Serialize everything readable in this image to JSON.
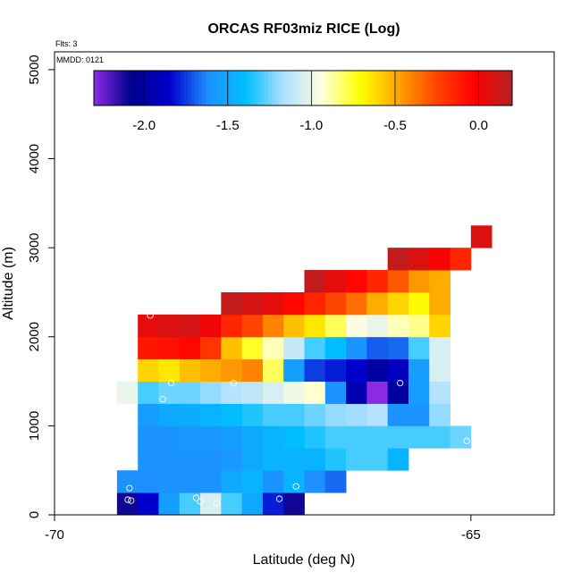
{
  "chart_data": {
    "type": "heatmap",
    "title": "ORCAS RF03miz RICE (Log)",
    "xlabel": "Latitude (deg N)",
    "ylabel": "Altitude (m)",
    "xlim": [
      -70,
      -64.0
    ],
    "ylim": [
      0,
      5200
    ],
    "x_ticks": [
      {
        "value": -70,
        "label": "-70"
      },
      {
        "value": -65,
        "label": "-65"
      }
    ],
    "y_ticks": [
      {
        "value": 0,
        "label": "0"
      },
      {
        "value": 1000,
        "label": "1000"
      },
      {
        "value": 2000,
        "label": "2000"
      },
      {
        "value": 3000,
        "label": "3000"
      },
      {
        "value": 4000,
        "label": "4000"
      },
      {
        "value": 5000,
        "label": "5000"
      }
    ],
    "annotations": {
      "flights": "Flts: 3",
      "date": "MMDD: 0121"
    },
    "colorbar": {
      "range": [
        -2.3,
        0.2
      ],
      "ticks": [
        {
          "value": -2.0,
          "label": "-2.0"
        },
        {
          "value": -1.5,
          "label": "-1.5"
        },
        {
          "value": -1.0,
          "label": "-1.0"
        },
        {
          "value": -0.5,
          "label": "-0.5"
        },
        {
          "value": 0.0,
          "label": "0.0"
        }
      ],
      "colormap": [
        "#8a2be2",
        "#00008b",
        "#0000cd",
        "#1e90ff",
        "#00bfff",
        "#b0e0ff",
        "#ffffe0",
        "#ffff00",
        "#ffa500",
        "#ff4500",
        "#ff0000",
        "#b22222"
      ]
    },
    "grid": {
      "x_start": -69.25,
      "dx": 0.25,
      "y_start": 0,
      "dy": 250
    },
    "cells": [
      {
        "ix": 0,
        "iy": 0,
        "v": -2.1
      },
      {
        "ix": 1,
        "iy": 0,
        "v": -1.85
      },
      {
        "ix": 2,
        "iy": 0,
        "v": -1.55
      },
      {
        "ix": 3,
        "iy": 0,
        "v": -1.3
      },
      {
        "ix": 4,
        "iy": 0,
        "v": -1.05
      },
      {
        "ix": 5,
        "iy": 0,
        "v": -1.3
      },
      {
        "ix": 6,
        "iy": 0,
        "v": -1.5
      },
      {
        "ix": 7,
        "iy": 0,
        "v": -1.8
      },
      {
        "ix": 8,
        "iy": 0,
        "v": -2.1
      },
      {
        "ix": 0,
        "iy": 1,
        "v": -1.62
      },
      {
        "ix": 1,
        "iy": 1,
        "v": -1.62
      },
      {
        "ix": 2,
        "iy": 1,
        "v": -1.6
      },
      {
        "ix": 3,
        "iy": 1,
        "v": -1.6
      },
      {
        "ix": 4,
        "iy": 1,
        "v": -1.6
      },
      {
        "ix": 5,
        "iy": 1,
        "v": -1.5
      },
      {
        "ix": 6,
        "iy": 1,
        "v": -1.45
      },
      {
        "ix": 7,
        "iy": 1,
        "v": -1.6
      },
      {
        "ix": 8,
        "iy": 1,
        "v": -1.45
      },
      {
        "ix": 9,
        "iy": 1,
        "v": -1.62
      },
      {
        "ix": 10,
        "iy": 1,
        "v": -1.68
      },
      {
        "ix": 1,
        "iy": 2,
        "v": -1.6
      },
      {
        "ix": 2,
        "iy": 2,
        "v": -1.6
      },
      {
        "ix": 3,
        "iy": 2,
        "v": -1.6
      },
      {
        "ix": 4,
        "iy": 2,
        "v": -1.6
      },
      {
        "ix": 5,
        "iy": 2,
        "v": -1.58
      },
      {
        "ix": 6,
        "iy": 2,
        "v": -1.5
      },
      {
        "ix": 7,
        "iy": 2,
        "v": -1.45
      },
      {
        "ix": 8,
        "iy": 2,
        "v": -1.45
      },
      {
        "ix": 9,
        "iy": 2,
        "v": -1.45
      },
      {
        "ix": 10,
        "iy": 2,
        "v": -1.35
      },
      {
        "ix": 11,
        "iy": 2,
        "v": -1.3
      },
      {
        "ix": 12,
        "iy": 2,
        "v": -1.3
      },
      {
        "ix": 13,
        "iy": 2,
        "v": -1.45
      },
      {
        "ix": 1,
        "iy": 3,
        "v": -1.6
      },
      {
        "ix": 2,
        "iy": 3,
        "v": -1.6
      },
      {
        "ix": 3,
        "iy": 3,
        "v": -1.58
      },
      {
        "ix": 4,
        "iy": 3,
        "v": -1.58
      },
      {
        "ix": 5,
        "iy": 3,
        "v": -1.55
      },
      {
        "ix": 6,
        "iy": 3,
        "v": -1.5
      },
      {
        "ix": 7,
        "iy": 3,
        "v": -1.45
      },
      {
        "ix": 8,
        "iy": 3,
        "v": -1.4
      },
      {
        "ix": 9,
        "iy": 3,
        "v": -1.35
      },
      {
        "ix": 10,
        "iy": 3,
        "v": -1.3
      },
      {
        "ix": 11,
        "iy": 3,
        "v": -1.3
      },
      {
        "ix": 12,
        "iy": 3,
        "v": -1.3
      },
      {
        "ix": 13,
        "iy": 3,
        "v": -1.3
      },
      {
        "ix": 14,
        "iy": 3,
        "v": -1.3
      },
      {
        "ix": 15,
        "iy": 3,
        "v": -1.3
      },
      {
        "ix": 16,
        "iy": 3,
        "v": -1.25
      },
      {
        "ix": 1,
        "iy": 4,
        "v": -1.55
      },
      {
        "ix": 2,
        "iy": 4,
        "v": -1.5
      },
      {
        "ix": 3,
        "iy": 4,
        "v": -1.48
      },
      {
        "ix": 4,
        "iy": 4,
        "v": -1.45
      },
      {
        "ix": 5,
        "iy": 4,
        "v": -1.4
      },
      {
        "ix": 6,
        "iy": 4,
        "v": -1.35
      },
      {
        "ix": 7,
        "iy": 4,
        "v": -1.3
      },
      {
        "ix": 8,
        "iy": 4,
        "v": -1.3
      },
      {
        "ix": 9,
        "iy": 4,
        "v": -1.25
      },
      {
        "ix": 10,
        "iy": 4,
        "v": -1.2
      },
      {
        "ix": 11,
        "iy": 4,
        "v": -1.18
      },
      {
        "ix": 12,
        "iy": 4,
        "v": -1.15
      },
      {
        "ix": 13,
        "iy": 4,
        "v": -1.6
      },
      {
        "ix": 14,
        "iy": 4,
        "v": -1.6
      },
      {
        "ix": 15,
        "iy": 4,
        "v": -1.2
      },
      {
        "ix": 0,
        "iy": 5,
        "v": -1.0
      },
      {
        "ix": 1,
        "iy": 5,
        "v": -1.3
      },
      {
        "ix": 2,
        "iy": 5,
        "v": -1.25
      },
      {
        "ix": 3,
        "iy": 5,
        "v": -1.25
      },
      {
        "ix": 4,
        "iy": 5,
        "v": -1.2
      },
      {
        "ix": 5,
        "iy": 5,
        "v": -1.15
      },
      {
        "ix": 6,
        "iy": 5,
        "v": -1.12
      },
      {
        "ix": 7,
        "iy": 5,
        "v": -1.05
      },
      {
        "ix": 8,
        "iy": 5,
        "v": -0.98
      },
      {
        "ix": 9,
        "iy": 5,
        "v": -0.92
      },
      {
        "ix": 10,
        "iy": 5,
        "v": -1.6
      },
      {
        "ix": 11,
        "iy": 5,
        "v": -1.95
      },
      {
        "ix": 12,
        "iy": 5,
        "v": -2.3
      },
      {
        "ix": 13,
        "iy": 5,
        "v": -2.0
      },
      {
        "ix": 14,
        "iy": 5,
        "v": -1.55
      },
      {
        "ix": 15,
        "iy": 5,
        "v": -1.15
      },
      {
        "ix": 1,
        "iy": 6,
        "v": -0.6
      },
      {
        "ix": 2,
        "iy": 6,
        "v": -0.65
      },
      {
        "ix": 3,
        "iy": 6,
        "v": -0.55
      },
      {
        "ix": 4,
        "iy": 6,
        "v": -0.5
      },
      {
        "ix": 5,
        "iy": 6,
        "v": -0.45
      },
      {
        "ix": 6,
        "iy": 6,
        "v": -0.4
      },
      {
        "ix": 7,
        "iy": 6,
        "v": -0.8
      },
      {
        "ix": 8,
        "iy": 6,
        "v": -1.55
      },
      {
        "ix": 9,
        "iy": 6,
        "v": -1.75
      },
      {
        "ix": 10,
        "iy": 6,
        "v": -1.8
      },
      {
        "ix": 11,
        "iy": 6,
        "v": -1.85
      },
      {
        "ix": 12,
        "iy": 6,
        "v": -2.0
      },
      {
        "ix": 13,
        "iy": 6,
        "v": -1.9
      },
      {
        "ix": 14,
        "iy": 6,
        "v": -1.55
      },
      {
        "ix": 15,
        "iy": 6,
        "v": -1.05
      },
      {
        "ix": 1,
        "iy": 7,
        "v": -0.1
      },
      {
        "ix": 2,
        "iy": 7,
        "v": -0.08
      },
      {
        "ix": 3,
        "iy": 7,
        "v": -0.05
      },
      {
        "ix": 4,
        "iy": 7,
        "v": -0.2
      },
      {
        "ix": 5,
        "iy": 7,
        "v": -0.55
      },
      {
        "ix": 6,
        "iy": 7,
        "v": -0.75
      },
      {
        "ix": 7,
        "iy": 7,
        "v": -0.9
      },
      {
        "ix": 8,
        "iy": 7,
        "v": -1.1
      },
      {
        "ix": 9,
        "iy": 7,
        "v": -1.3
      },
      {
        "ix": 10,
        "iy": 7,
        "v": -1.4
      },
      {
        "ix": 11,
        "iy": 7,
        "v": -1.6
      },
      {
        "ix": 12,
        "iy": 7,
        "v": -1.7
      },
      {
        "ix": 13,
        "iy": 7,
        "v": -1.68
      },
      {
        "ix": 14,
        "iy": 7,
        "v": -1.3
      },
      {
        "ix": 15,
        "iy": 7,
        "v": -1.05
      },
      {
        "ix": 1,
        "iy": 8,
        "v": 0.05
      },
      {
        "ix": 2,
        "iy": 8,
        "v": 0.08
      },
      {
        "ix": 3,
        "iy": 8,
        "v": 0.1
      },
      {
        "ix": 4,
        "iy": 8,
        "v": 0.02
      },
      {
        "ix": 5,
        "iy": 8,
        "v": -0.15
      },
      {
        "ix": 6,
        "iy": 8,
        "v": -0.25
      },
      {
        "ix": 7,
        "iy": 8,
        "v": -0.4
      },
      {
        "ix": 8,
        "iy": 8,
        "v": -0.55
      },
      {
        "ix": 9,
        "iy": 8,
        "v": -0.65
      },
      {
        "ix": 10,
        "iy": 8,
        "v": -0.8
      },
      {
        "ix": 11,
        "iy": 8,
        "v": -0.95
      },
      {
        "ix": 12,
        "iy": 8,
        "v": -1.0
      },
      {
        "ix": 13,
        "iy": 8,
        "v": -0.9
      },
      {
        "ix": 14,
        "iy": 8,
        "v": -0.85
      },
      {
        "ix": 15,
        "iy": 8,
        "v": -0.6
      },
      {
        "ix": 5,
        "iy": 9,
        "v": 0.15
      },
      {
        "ix": 6,
        "iy": 9,
        "v": 0.1
      },
      {
        "ix": 7,
        "iy": 9,
        "v": 0.05
      },
      {
        "ix": 8,
        "iy": 9,
        "v": -0.05
      },
      {
        "ix": 9,
        "iy": 9,
        "v": -0.15
      },
      {
        "ix": 10,
        "iy": 9,
        "v": -0.25
      },
      {
        "ix": 11,
        "iy": 9,
        "v": -0.35
      },
      {
        "ix": 12,
        "iy": 9,
        "v": -0.5
      },
      {
        "ix": 13,
        "iy": 9,
        "v": -0.6
      },
      {
        "ix": 14,
        "iy": 9,
        "v": -0.7
      },
      {
        "ix": 15,
        "iy": 9,
        "v": -0.5
      },
      {
        "ix": 9,
        "iy": 10,
        "v": 0.15
      },
      {
        "ix": 10,
        "iy": 10,
        "v": 0.05
      },
      {
        "ix": 11,
        "iy": 10,
        "v": -0.05
      },
      {
        "ix": 12,
        "iy": 10,
        "v": -0.15
      },
      {
        "ix": 13,
        "iy": 10,
        "v": -0.3
      },
      {
        "ix": 14,
        "iy": 10,
        "v": -0.45
      },
      {
        "ix": 15,
        "iy": 10,
        "v": -0.5
      },
      {
        "ix": 13,
        "iy": 11,
        "v": 0.15
      },
      {
        "ix": 14,
        "iy": 11,
        "v": 0.08
      },
      {
        "ix": 15,
        "iy": 11,
        "v": 0.0
      },
      {
        "ix": 16,
        "iy": 11,
        "v": -0.15
      },
      {
        "ix": 17,
        "iy": 12,
        "v": 0.08
      }
    ],
    "flight_points": [
      {
        "x": -69.1,
        "y": 300
      },
      {
        "x": -69.12,
        "y": 170
      },
      {
        "x": -69.08,
        "y": 160
      },
      {
        "x": -68.7,
        "y": 1300
      },
      {
        "x": -68.6,
        "y": 1480
      },
      {
        "x": -68.85,
        "y": 2240
      },
      {
        "x": -68.3,
        "y": 190
      },
      {
        "x": -68.25,
        "y": 150
      },
      {
        "x": -68.05,
        "y": 130
      },
      {
        "x": -67.85,
        "y": 1480
      },
      {
        "x": -67.3,
        "y": 180
      },
      {
        "x": -67.1,
        "y": 320
      },
      {
        "x": -65.85,
        "y": 1480
      },
      {
        "x": -65.05,
        "y": 830
      },
      {
        "x": -64.35,
        "y": 3240
      }
    ]
  }
}
